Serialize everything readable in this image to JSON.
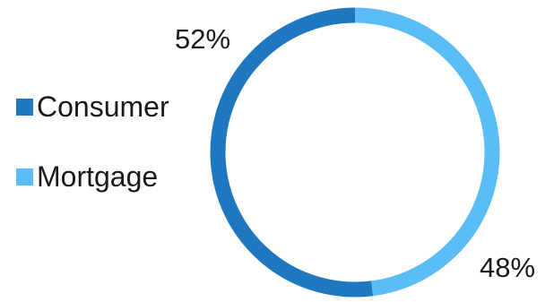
{
  "chart_data": {
    "type": "pie",
    "variant": "donut",
    "title": "",
    "categories": [
      "Consumer",
      "Mortgage"
    ],
    "values": [
      52,
      48
    ],
    "value_labels": [
      "52%",
      "48%"
    ],
    "colors": [
      "#1f77c0",
      "#5bbdf8"
    ],
    "legend_placement": "left"
  }
}
